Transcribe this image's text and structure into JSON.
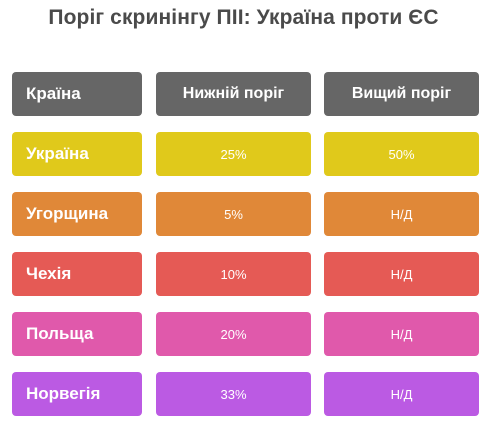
{
  "title": "Поріг скринінгу ПІІ: Україна проти ЄС",
  "table": {
    "headers": [
      "Країна",
      "Нижній поріг",
      "Вищий поріг"
    ],
    "rows": [
      {
        "country": "Україна",
        "lower": "25%",
        "upper": "50%",
        "color": "#e0c91b"
      },
      {
        "country": "Угорщина",
        "lower": "5%",
        "upper": "Н/Д",
        "color": "#e08838"
      },
      {
        "country": "Чехія",
        "lower": "10%",
        "upper": "Н/Д",
        "color": "#e55a55"
      },
      {
        "country": "Польща",
        "lower": "20%",
        "upper": "Н/Д",
        "color": "#e059ab"
      },
      {
        "country": "Норвегія",
        "lower": "33%",
        "upper": "Н/Д",
        "color": "#bb5ae3"
      }
    ]
  },
  "colors": {
    "header": "#666666",
    "title": "#4a4a4a"
  }
}
